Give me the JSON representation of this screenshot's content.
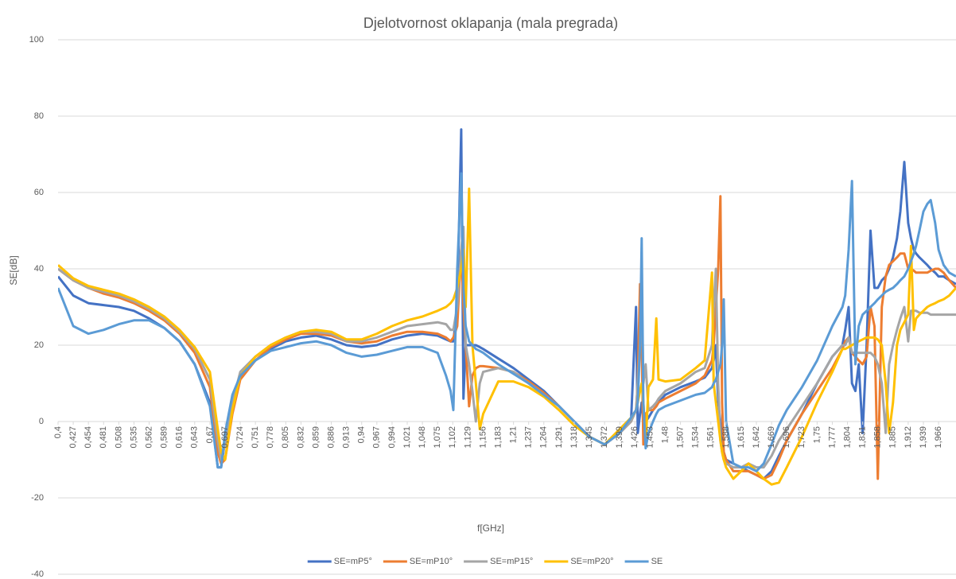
{
  "chart_data": {
    "type": "line",
    "title": "Djelotvornost oklapanja (mala pregrada)",
    "x_label": "f[GHz]",
    "y_label": "SE[dB]",
    "grid": true,
    "legend": "bottom",
    "xlim": [
      0.4,
      1.997
    ],
    "ylim": [
      -40,
      100
    ],
    "yticks": [
      -40,
      -20,
      0,
      20,
      40,
      60,
      80,
      100
    ],
    "xticks": [
      {
        "value": 0.4,
        "label": "0,4"
      },
      {
        "value": 0.427,
        "label": "0,427"
      },
      {
        "value": 0.454,
        "label": "0,454"
      },
      {
        "value": 0.481,
        "label": "0,481"
      },
      {
        "value": 0.508,
        "label": "0,508"
      },
      {
        "value": 0.535,
        "label": "0,535"
      },
      {
        "value": 0.562,
        "label": "0,562"
      },
      {
        "value": 0.589,
        "label": "0,589"
      },
      {
        "value": 0.616,
        "label": "0,616"
      },
      {
        "value": 0.643,
        "label": "0,643"
      },
      {
        "value": 0.67,
        "label": "0,67"
      },
      {
        "value": 0.697,
        "label": "0,697"
      },
      {
        "value": 0.724,
        "label": "0,724"
      },
      {
        "value": 0.751,
        "label": "0,751"
      },
      {
        "value": 0.778,
        "label": "0,778"
      },
      {
        "value": 0.805,
        "label": "0,805"
      },
      {
        "value": 0.832,
        "label": "0,832"
      },
      {
        "value": 0.859,
        "label": "0,859"
      },
      {
        "value": 0.886,
        "label": "0,886"
      },
      {
        "value": 0.913,
        "label": "0,913"
      },
      {
        "value": 0.94,
        "label": "0,94"
      },
      {
        "value": 0.967,
        "label": "0,967"
      },
      {
        "value": 0.994,
        "label": "0,994"
      },
      {
        "value": 1.021,
        "label": "1,021"
      },
      {
        "value": 1.048,
        "label": "1,048"
      },
      {
        "value": 1.075,
        "label": "1,075"
      },
      {
        "value": 1.102,
        "label": "1,102"
      },
      {
        "value": 1.129,
        "label": "1,129"
      },
      {
        "value": 1.156,
        "label": "1,156"
      },
      {
        "value": 1.183,
        "label": "1,183"
      },
      {
        "value": 1.21,
        "label": "1,21"
      },
      {
        "value": 1.237,
        "label": "1,237"
      },
      {
        "value": 1.264,
        "label": "1,264"
      },
      {
        "value": 1.291,
        "label": "1,291"
      },
      {
        "value": 1.318,
        "label": "1,318"
      },
      {
        "value": 1.345,
        "label": "1,345"
      },
      {
        "value": 1.372,
        "label": "1,372"
      },
      {
        "value": 1.399,
        "label": "1,399"
      },
      {
        "value": 1.426,
        "label": "1,426"
      },
      {
        "value": 1.453,
        "label": "1,453"
      },
      {
        "value": 1.48,
        "label": "1,48"
      },
      {
        "value": 1.507,
        "label": "1,507"
      },
      {
        "value": 1.534,
        "label": "1,534"
      },
      {
        "value": 1.561,
        "label": "1,561"
      },
      {
        "value": 1.588,
        "label": "1,588"
      },
      {
        "value": 1.615,
        "label": "1,615"
      },
      {
        "value": 1.642,
        "label": "1,642"
      },
      {
        "value": 1.669,
        "label": "1,669"
      },
      {
        "value": 1.696,
        "label": "1,696"
      },
      {
        "value": 1.723,
        "label": "1,723"
      },
      {
        "value": 1.75,
        "label": "1,75"
      },
      {
        "value": 1.777,
        "label": "1,777"
      },
      {
        "value": 1.804,
        "label": "1,804"
      },
      {
        "value": 1.831,
        "label": "1,831"
      },
      {
        "value": 1.858,
        "label": "1,858"
      },
      {
        "value": 1.885,
        "label": "1,885"
      },
      {
        "value": 1.912,
        "label": "1,912"
      },
      {
        "value": 1.939,
        "label": "1,939"
      },
      {
        "value": 1.966,
        "label": "1,966"
      }
    ],
    "x": [
      0.4,
      0.427,
      0.454,
      0.481,
      0.508,
      0.535,
      0.562,
      0.589,
      0.616,
      0.643,
      0.67,
      0.684,
      0.69,
      0.697,
      0.71,
      0.724,
      0.751,
      0.778,
      0.805,
      0.832,
      0.859,
      0.886,
      0.913,
      0.94,
      0.967,
      0.994,
      1.021,
      1.048,
      1.075,
      1.09,
      1.098,
      1.103,
      1.11,
      1.117,
      1.121,
      1.125,
      1.131,
      1.137,
      1.143,
      1.15,
      1.156,
      1.183,
      1.21,
      1.237,
      1.264,
      1.291,
      1.318,
      1.345,
      1.372,
      1.399,
      1.419,
      1.428,
      1.431,
      1.435,
      1.438,
      1.441,
      1.445,
      1.45,
      1.458,
      1.464,
      1.468,
      1.48,
      1.507,
      1.534,
      1.55,
      1.563,
      1.566,
      1.57,
      1.574,
      1.578,
      1.581,
      1.584,
      1.588,
      1.601,
      1.615,
      1.628,
      1.642,
      1.655,
      1.669,
      1.682,
      1.696,
      1.723,
      1.75,
      1.777,
      1.795,
      1.8,
      1.806,
      1.812,
      1.818,
      1.824,
      1.831,
      1.838,
      1.845,
      1.852,
      1.858,
      1.865,
      1.872,
      1.878,
      1.885,
      1.892,
      1.898,
      1.905,
      1.912,
      1.917,
      1.922,
      1.926,
      1.932,
      1.939,
      1.946,
      1.952,
      1.96,
      1.966,
      1.975,
      1.985,
      1.997
    ],
    "series": [
      {
        "name": "SE=mP5°",
        "color": "#4472C4",
        "values": [
          38,
          33,
          31,
          30.5,
          30,
          29,
          27,
          24.5,
          21,
          15,
          5,
          -12,
          -12,
          -5,
          5,
          12,
          16,
          19,
          21,
          22,
          22.5,
          21.5,
          20,
          19.5,
          20,
          21.5,
          22.5,
          23,
          22.5,
          21.5,
          21,
          21,
          30,
          76.5,
          6,
          20,
          20,
          20,
          20,
          19.5,
          19,
          16.5,
          14,
          11,
          8,
          4,
          0,
          -4,
          -6,
          -3,
          0,
          30,
          -3,
          2,
          5,
          0,
          0,
          1,
          3,
          4,
          5,
          7,
          9,
          10.5,
          11.5,
          14,
          16,
          20,
          5,
          0,
          -5,
          -8,
          -10,
          -11,
          -12,
          -13,
          -14,
          -15,
          -13,
          -9,
          -5,
          2,
          10,
          17,
          20,
          24,
          30,
          10,
          8,
          15,
          -3,
          20,
          50,
          35,
          35,
          37,
          38,
          40,
          43,
          48,
          55,
          68,
          52,
          48,
          45,
          44,
          43,
          42,
          41,
          40,
          39,
          38,
          38,
          37,
          36
        ]
      },
      {
        "name": "SE=mP10°",
        "color": "#ED7D31",
        "values": [
          40,
          37,
          35,
          33.5,
          32.5,
          31,
          29,
          26.5,
          23,
          18,
          9,
          -8,
          -11,
          -10,
          2,
          11,
          16,
          19.5,
          21.5,
          23,
          23,
          22.5,
          21,
          20.5,
          21,
          22.5,
          23.5,
          23.5,
          23,
          22,
          21,
          22,
          25,
          45,
          30,
          20,
          4,
          12,
          14,
          14.5,
          14.5,
          14,
          13,
          10.5,
          7.5,
          4,
          0,
          -4,
          -6,
          -3,
          0,
          3,
          10,
          36,
          20,
          -6,
          2,
          3,
          3,
          4,
          5,
          6,
          8,
          10,
          12,
          16,
          20,
          30,
          40,
          59,
          5,
          -8,
          -10,
          -13,
          -13,
          -13,
          -14,
          -15,
          -14,
          -10,
          -5,
          2,
          8,
          14,
          19,
          21,
          22,
          18,
          17,
          16,
          15,
          17,
          30,
          25,
          -15,
          30,
          38,
          41,
          42,
          43,
          44,
          44,
          40,
          40,
          39.5,
          39,
          39,
          39,
          39,
          39.5,
          40,
          40,
          39,
          37,
          35
        ]
      },
      {
        "name": "SE=mP15°",
        "color": "#A5A5A5",
        "values": [
          40,
          37,
          35,
          34,
          33,
          31.5,
          29.5,
          27,
          23.5,
          19,
          11,
          -5,
          -10,
          -6,
          5,
          13,
          17,
          20,
          22,
          23.5,
          23.5,
          23,
          21,
          21,
          22,
          23.5,
          25,
          25.5,
          26,
          25.5,
          24,
          24,
          30,
          45,
          51,
          20,
          15,
          8,
          0,
          10,
          13,
          14,
          13,
          10,
          7,
          4,
          0,
          -4,
          -6,
          -3,
          0,
          3,
          10,
          20,
          35,
          10,
          15,
          3,
          4,
          5,
          6,
          8,
          10,
          13,
          14,
          20,
          30,
          40,
          10,
          -5,
          -8,
          -10,
          -11,
          -12,
          -12,
          -11,
          -12,
          -12,
          -9,
          -5,
          -2,
          4,
          10,
          17,
          20,
          20,
          22,
          18,
          18,
          18,
          18,
          18,
          18,
          17,
          15,
          10,
          -3,
          15,
          20,
          24,
          27,
          30,
          21,
          29,
          29,
          29,
          28.5,
          28.5,
          28.5,
          28,
          28,
          28,
          28,
          28,
          28
        ]
      },
      {
        "name": "SE=mP20°",
        "color": "#FFC000",
        "values": [
          41,
          37.5,
          35.5,
          34.5,
          33.5,
          32,
          30,
          27.5,
          24,
          19.5,
          13,
          -2,
          -8,
          -10,
          3,
          12,
          17,
          20,
          22,
          23.5,
          24,
          23.5,
          21.5,
          21.5,
          23,
          25,
          26.5,
          27.5,
          29,
          30,
          31,
          32,
          35,
          40,
          45,
          30,
          61,
          20,
          10,
          -2,
          2,
          10.5,
          10.5,
          9,
          6.5,
          3,
          -1,
          -4,
          -6,
          -2,
          1,
          3,
          5,
          8,
          10,
          5,
          -6,
          9,
          11,
          27,
          11,
          10.5,
          11,
          14,
          16,
          39,
          10,
          5,
          0,
          -5,
          -8,
          -10,
          -12,
          -15,
          -13,
          -11,
          -13,
          -15,
          -16.5,
          -16,
          -12,
          -4,
          5,
          13,
          19,
          19,
          19.5,
          20,
          20.5,
          21,
          21.5,
          22,
          22,
          22,
          21.5,
          20,
          10,
          -3,
          5,
          20,
          24,
          26,
          28,
          46,
          24,
          27,
          28,
          29,
          30,
          30.5,
          31,
          31.5,
          32,
          33,
          35
        ]
      },
      {
        "name": "SE",
        "color": "#5B9BD5",
        "values": [
          35,
          25,
          23,
          24,
          25.5,
          26.5,
          26.5,
          24.5,
          21,
          15,
          4,
          -12,
          -12,
          -3,
          7,
          12,
          16,
          18.5,
          19.5,
          20.5,
          21,
          20,
          18,
          17,
          17.5,
          18.5,
          19.5,
          19.5,
          18,
          12,
          8,
          3,
          40,
          65,
          35,
          25,
          21,
          20,
          19,
          18.5,
          18,
          15,
          12.5,
          10,
          7,
          4,
          0,
          -4,
          -6,
          -3,
          1,
          3,
          5,
          20,
          48,
          5,
          -7,
          -3,
          0,
          2,
          3,
          4,
          5.5,
          7,
          7.5,
          9,
          10,
          11,
          13,
          15,
          20,
          32,
          0,
          -11,
          -12,
          -12,
          -13,
          -11,
          -6,
          -1,
          3,
          9,
          16,
          25,
          30,
          33,
          45,
          63,
          15,
          25,
          28,
          29,
          30,
          31,
          32,
          33,
          34,
          34.5,
          35,
          36,
          37,
          38,
          40,
          42,
          44,
          46,
          50,
          55,
          57,
          58,
          52,
          45,
          41,
          39,
          38
        ]
      }
    ]
  }
}
